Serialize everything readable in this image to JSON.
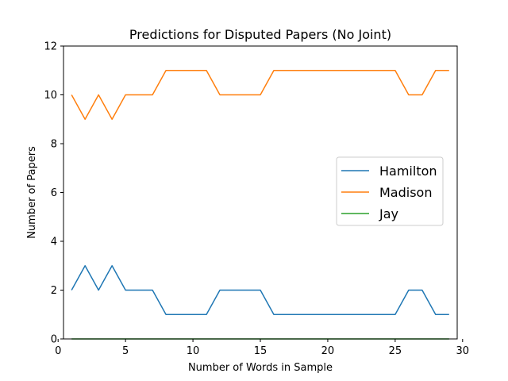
{
  "chart_data": {
    "type": "line",
    "title": "Predictions for Disputed Papers (No Joint)",
    "xlabel": "Number of Words in Sample",
    "ylabel": "Number of Papers",
    "xlim": [
      0.4,
      29.6
    ],
    "ylim": [
      0,
      12
    ],
    "xticks": [
      0,
      5,
      10,
      15,
      20,
      25,
      30
    ],
    "yticks": [
      0,
      2,
      4,
      6,
      8,
      10,
      12
    ],
    "grid": false,
    "legend_position": "center-right",
    "x": [
      1,
      2,
      3,
      4,
      5,
      6,
      7,
      8,
      9,
      10,
      11,
      12,
      13,
      14,
      15,
      16,
      17,
      18,
      19,
      20,
      21,
      22,
      23,
      24,
      25,
      26,
      27,
      28,
      29
    ],
    "series": [
      {
        "name": "Hamilton",
        "color": "#1f77b4",
        "values": [
          2,
          3,
          2,
          3,
          2,
          2,
          2,
          1,
          1,
          1,
          1,
          2,
          2,
          2,
          2,
          1,
          1,
          1,
          1,
          1,
          1,
          1,
          1,
          1,
          1,
          2,
          2,
          1,
          1
        ]
      },
      {
        "name": "Madison",
        "color": "#ff7f0e",
        "values": [
          10,
          9,
          10,
          9,
          10,
          10,
          10,
          11,
          11,
          11,
          11,
          10,
          10,
          10,
          10,
          11,
          11,
          11,
          11,
          11,
          11,
          11,
          11,
          11,
          11,
          10,
          10,
          11,
          11
        ]
      },
      {
        "name": "Jay",
        "color": "#2ca02c",
        "values": [
          0,
          0,
          0,
          0,
          0,
          0,
          0,
          0,
          0,
          0,
          0,
          0,
          0,
          0,
          0,
          0,
          0,
          0,
          0,
          0,
          0,
          0,
          0,
          0,
          0,
          0,
          0,
          0,
          0
        ]
      }
    ]
  }
}
